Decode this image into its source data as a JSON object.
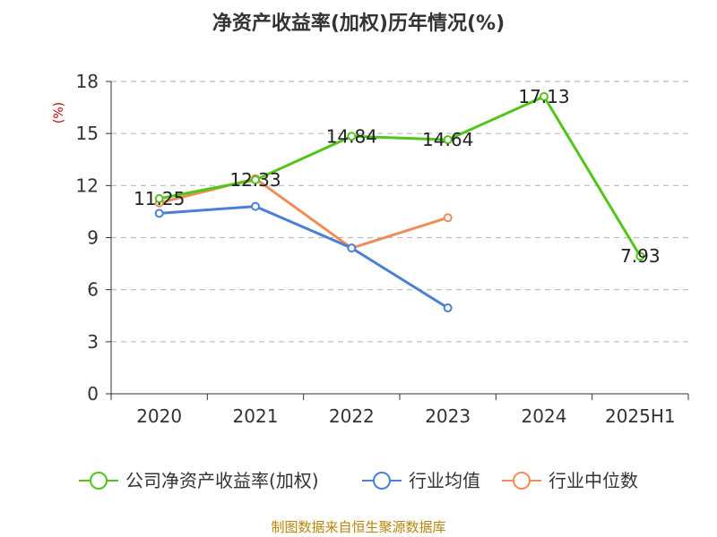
{
  "chart_data": {
    "type": "line",
    "title": "净资产收益率(加权)历年情况(%)",
    "ylabel": "(%)",
    "categories": [
      "2020",
      "2021",
      "2022",
      "2023",
      "2024",
      "2025H1"
    ],
    "ylim": [
      0,
      18
    ],
    "yticks": [
      "0",
      "3",
      "6",
      "9",
      "12",
      "15",
      "18"
    ],
    "grid": true,
    "legend_position": "bottom",
    "series": [
      {
        "name": "公司净资产收益率(加权)",
        "color": "#52c41a",
        "values": [
          11.25,
          12.33,
          14.84,
          14.64,
          17.13,
          7.93
        ],
        "labels": [
          "11.25",
          "12.33",
          "14.84",
          "14.64",
          "17.13",
          "7.93"
        ]
      },
      {
        "name": "行业均值",
        "color": "#4a7fd6",
        "values": [
          10.4,
          10.8,
          8.4,
          4.95,
          null,
          null
        ]
      },
      {
        "name": "行业中位数",
        "color": "#f08c5a",
        "values": [
          11.0,
          12.4,
          8.4,
          10.15,
          null,
          null
        ]
      }
    ]
  },
  "source": "制图数据来自恒生聚源数据库"
}
